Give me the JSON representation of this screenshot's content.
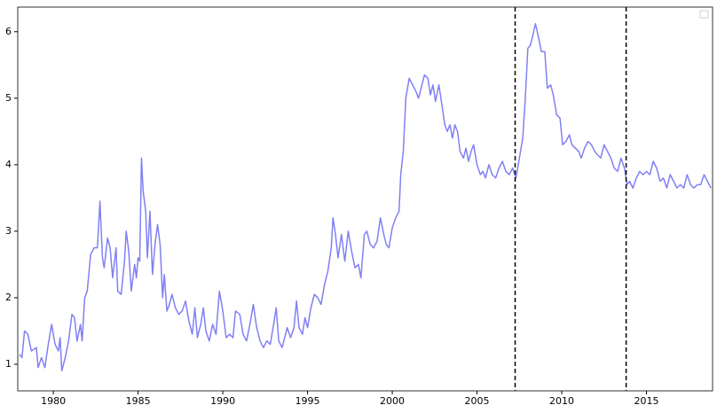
{
  "chart_data": {
    "type": "line",
    "x": [
      1978.0,
      1978.15,
      1978.3,
      1978.5,
      1978.7,
      1979.0,
      1979.1,
      1979.3,
      1979.5,
      1979.7,
      1979.9,
      1980.1,
      1980.3,
      1980.4,
      1980.5,
      1980.7,
      1980.9,
      1981.1,
      1981.25,
      1981.4,
      1981.6,
      1981.7,
      1981.85,
      1982.0,
      1982.2,
      1982.4,
      1982.6,
      1982.75,
      1982.9,
      1983.0,
      1983.2,
      1983.35,
      1983.5,
      1983.7,
      1983.8,
      1984.0,
      1984.2,
      1984.3,
      1984.45,
      1984.6,
      1984.8,
      1984.9,
      1985.0,
      1985.1,
      1985.2,
      1985.3,
      1985.45,
      1985.55,
      1985.7,
      1985.85,
      1986.0,
      1986.15,
      1986.3,
      1986.45,
      1986.55,
      1986.7,
      1986.85,
      1987.0,
      1987.2,
      1987.4,
      1987.6,
      1987.8,
      1988.0,
      1988.2,
      1988.35,
      1988.5,
      1988.7,
      1988.85,
      1989.0,
      1989.2,
      1989.4,
      1989.6,
      1989.8,
      1990.0,
      1990.2,
      1990.4,
      1990.6,
      1990.75,
      1991.0,
      1991.2,
      1991.4,
      1991.6,
      1991.8,
      1992.0,
      1992.2,
      1992.4,
      1992.6,
      1992.8,
      1993.0,
      1993.15,
      1993.3,
      1993.5,
      1993.65,
      1993.8,
      1994.0,
      1994.2,
      1994.35,
      1994.5,
      1994.7,
      1994.85,
      1995.0,
      1995.2,
      1995.4,
      1995.6,
      1995.8,
      1996.0,
      1996.2,
      1996.4,
      1996.5,
      1996.65,
      1996.8,
      1997.0,
      1997.2,
      1997.4,
      1997.6,
      1997.8,
      1998.0,
      1998.15,
      1998.35,
      1998.5,
      1998.7,
      1998.9,
      1999.1,
      1999.3,
      1999.5,
      1999.65,
      1999.8,
      2000.0,
      2000.2,
      2000.4,
      2000.5,
      2000.65,
      2000.8,
      2001.0,
      2001.2,
      2001.4,
      2001.55,
      2001.75,
      2001.9,
      2002.1,
      2002.25,
      2002.4,
      2002.55,
      2002.75,
      2002.9,
      2003.1,
      2003.25,
      2003.4,
      2003.55,
      2003.7,
      2003.85,
      2004.0,
      2004.2,
      2004.35,
      2004.5,
      2004.65,
      2004.8,
      2005.0,
      2005.2,
      2005.35,
      2005.5,
      2005.7,
      2005.9,
      2006.1,
      2006.3,
      2006.5,
      2006.7,
      2006.9,
      2007.1,
      2007.3,
      2007.5,
      2007.7,
      2007.85,
      2008.0,
      2008.15,
      2008.3,
      2008.45,
      2008.6,
      2008.8,
      2009.0,
      2009.15,
      2009.35,
      2009.5,
      2009.7,
      2009.9,
      2010.05,
      2010.25,
      2010.45,
      2010.6,
      2010.8,
      2011.0,
      2011.15,
      2011.35,
      2011.55,
      2011.75,
      2011.95,
      2012.1,
      2012.3,
      2012.5,
      2012.7,
      2012.9,
      2013.1,
      2013.3,
      2013.5,
      2013.7,
      2013.85,
      2014.0,
      2014.2,
      2014.4,
      2014.6,
      2014.8,
      2015.0,
      2015.2,
      2015.4,
      2015.6,
      2015.8,
      2016.0,
      2016.2,
      2016.4,
      2016.6,
      2016.8,
      2017.0,
      2017.2,
      2017.4,
      2017.6,
      2017.8,
      2018.0,
      2018.2,
      2018.4,
      2018.6,
      2018.8
    ],
    "values": [
      1.15,
      1.1,
      1.5,
      1.45,
      1.2,
      1.25,
      0.95,
      1.1,
      0.95,
      1.3,
      1.6,
      1.3,
      1.2,
      1.4,
      0.9,
      1.1,
      1.35,
      1.75,
      1.7,
      1.35,
      1.6,
      1.35,
      2.0,
      2.1,
      2.65,
      2.75,
      2.75,
      3.45,
      2.6,
      2.45,
      2.9,
      2.75,
      2.3,
      2.75,
      2.1,
      2.05,
      2.55,
      3.0,
      2.7,
      2.1,
      2.5,
      2.3,
      2.6,
      2.55,
      4.1,
      3.6,
      3.3,
      2.6,
      3.3,
      2.35,
      2.8,
      3.1,
      2.8,
      2.0,
      2.35,
      1.8,
      1.9,
      2.05,
      1.85,
      1.75,
      1.8,
      1.95,
      1.65,
      1.45,
      1.85,
      1.4,
      1.6,
      1.85,
      1.5,
      1.35,
      1.6,
      1.45,
      2.1,
      1.8,
      1.4,
      1.45,
      1.4,
      1.8,
      1.75,
      1.45,
      1.35,
      1.6,
      1.9,
      1.55,
      1.35,
      1.25,
      1.35,
      1.3,
      1.6,
      1.85,
      1.35,
      1.25,
      1.4,
      1.55,
      1.4,
      1.55,
      1.95,
      1.55,
      1.45,
      1.7,
      1.55,
      1.85,
      2.05,
      2.0,
      1.9,
      2.2,
      2.4,
      2.75,
      3.2,
      2.95,
      2.6,
      2.95,
      2.55,
      3.0,
      2.7,
      2.45,
      2.5,
      2.3,
      2.95,
      3.0,
      2.8,
      2.75,
      2.85,
      3.2,
      2.95,
      2.8,
      2.75,
      3.05,
      3.2,
      3.3,
      3.85,
      4.2,
      5.0,
      5.3,
      5.2,
      5.1,
      5.0,
      5.2,
      5.35,
      5.3,
      5.05,
      5.2,
      4.95,
      5.2,
      4.95,
      4.6,
      4.5,
      4.6,
      4.4,
      4.6,
      4.5,
      4.2,
      4.1,
      4.25,
      4.05,
      4.2,
      4.3,
      4.0,
      3.85,
      3.9,
      3.8,
      4.0,
      3.85,
      3.8,
      3.95,
      4.05,
      3.9,
      3.85,
      3.95,
      3.8,
      4.1,
      4.4,
      5.0,
      5.75,
      5.8,
      5.95,
      6.12,
      5.95,
      5.7,
      5.7,
      5.15,
      5.2,
      5.05,
      4.75,
      4.7,
      4.3,
      4.35,
      4.45,
      4.3,
      4.25,
      4.2,
      4.1,
      4.25,
      4.35,
      4.3,
      4.2,
      4.15,
      4.1,
      4.3,
      4.2,
      4.1,
      3.95,
      3.9,
      4.1,
      3.95,
      3.7,
      3.75,
      3.65,
      3.8,
      3.9,
      3.85,
      3.9,
      3.85,
      4.05,
      3.95,
      3.75,
      3.8,
      3.65,
      3.85,
      3.75,
      3.65,
      3.7,
      3.65,
      3.85,
      3.7,
      3.65,
      3.7,
      3.7,
      3.85,
      3.75,
      3.65
    ],
    "color": "#8080f4",
    "xlim": [
      1977.9,
      2018.9
    ],
    "xticks": [
      1980,
      1985,
      1990,
      1995,
      2000,
      2005,
      2010,
      2015
    ],
    "ylim": [
      0.6,
      6.37
    ],
    "yticks": [
      1,
      2,
      3,
      4,
      5,
      6
    ],
    "vlines": [
      2007.25,
      2013.8
    ],
    "vline_color": "#000000"
  }
}
